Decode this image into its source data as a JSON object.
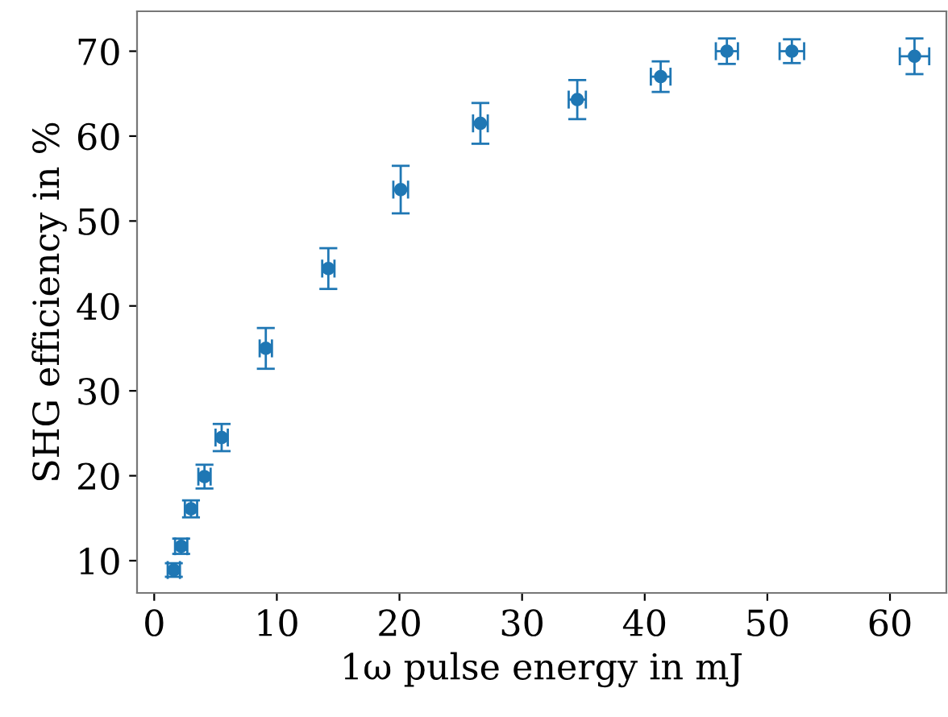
{
  "chart_data": {
    "type": "scatter",
    "xlabel": "1ω pulse energy in mJ",
    "ylabel": "SHG efficiency in %",
    "xlim": [
      -1.4,
      64.6
    ],
    "ylim": [
      6.2,
      74.7
    ],
    "xticks": [
      0,
      10,
      20,
      30,
      40,
      50,
      60
    ],
    "yticks": [
      10,
      20,
      30,
      40,
      50,
      60,
      70
    ],
    "grid": false,
    "marker": "circle",
    "series": [
      {
        "color": "#1f77b4",
        "x": [
          1.6,
          2.2,
          3.0,
          4.1,
          5.5,
          9.1,
          14.2,
          20.1,
          26.6,
          34.5,
          41.3,
          46.7,
          52.0,
          62.0
        ],
        "values": [
          8.9,
          11.7,
          16.1,
          19.9,
          24.5,
          35.0,
          44.4,
          53.7,
          61.5,
          64.3,
          67.0,
          70.0,
          70.0,
          69.4
        ],
        "errors": [
          0.8,
          0.9,
          1.0,
          1.4,
          1.6,
          2.4,
          2.4,
          2.8,
          2.4,
          2.3,
          1.8,
          1.5,
          1.4,
          2.1
        ],
        "xerrors": [
          0.5,
          0.5,
          0.5,
          0.5,
          0.5,
          0.5,
          0.5,
          0.6,
          0.6,
          0.7,
          0.8,
          0.9,
          1.0,
          1.2
        ]
      }
    ]
  }
}
